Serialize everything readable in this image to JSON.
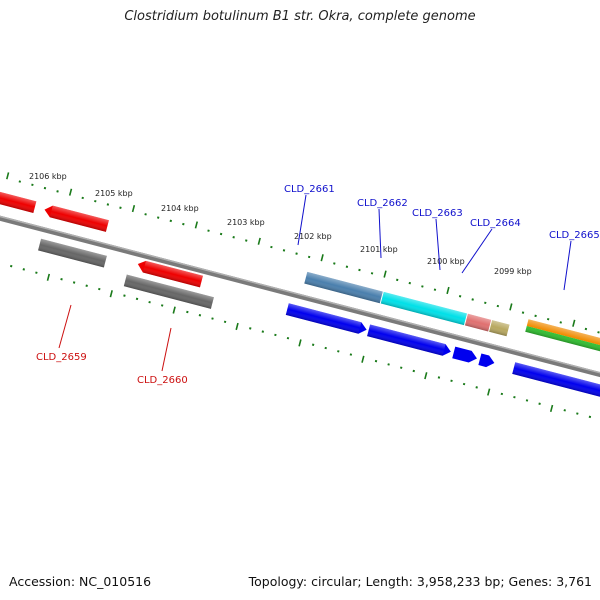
{
  "title": "Clostridium botulinum B1 str. Okra, complete genome",
  "footer": {
    "accession": "Accession: NC_010516",
    "summary": "Topology: circular; Length: 3,958,233 bp; Genes: 3,761"
  },
  "scale_labels": [
    "2106 kbp",
    "2105 kbp",
    "2104 kbp",
    "2103 kbp",
    "2102 kbp",
    "2101 kbp",
    "2100 kbp",
    "2099 kbp"
  ],
  "gene_labels": {
    "above": [
      "CLD_2661",
      "CLD_2662",
      "CLD_2663",
      "CLD_2664",
      "CLD_2665"
    ],
    "below": [
      "CLD_2659",
      "CLD_2660"
    ]
  },
  "colors": {
    "label_above": "#1010cc",
    "label_below": "#cc1010",
    "tick": "#1a7a1a",
    "backbone": "#777777",
    "gene_red": "#ee0000",
    "gene_gray": "#666666",
    "gene_blue": "#0000ee",
    "gene_steelblue": "#4a7fad",
    "gene_cyan": "#00e0e8",
    "gene_pink": "#e07070",
    "gene_khaki": "#b8a860",
    "gene_orange": "#f08a00",
    "gene_green": "#30c030"
  }
}
